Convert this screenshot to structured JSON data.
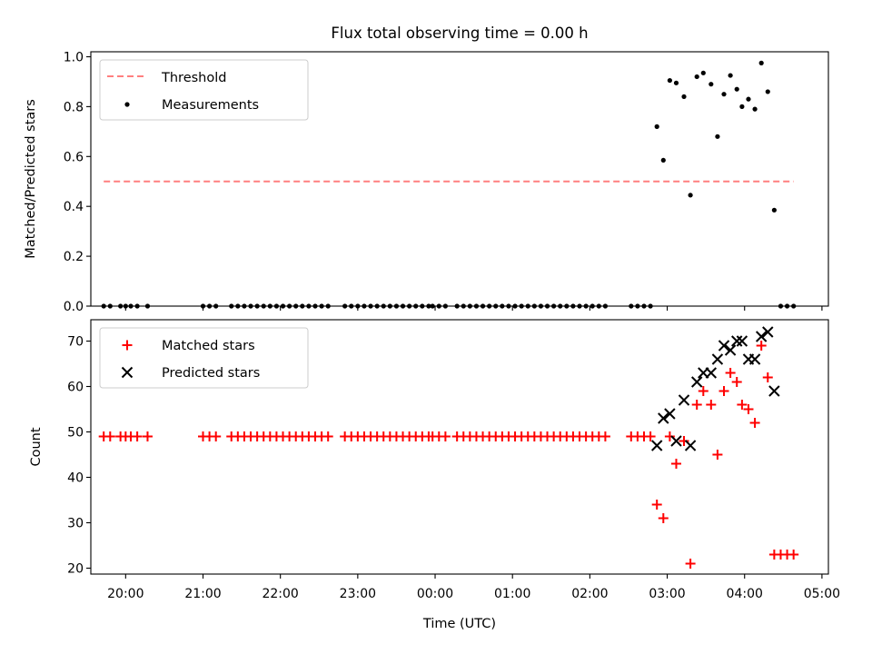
{
  "title": "Flux total observing time = 0.00 h",
  "chart_data": [
    {
      "type": "scatter",
      "title": "Flux total observing time = 0.00 h",
      "xlabel": "",
      "ylabel": "Matched/Predicted stars",
      "xlim": [
        "19:33",
        "05:05"
      ],
      "ylim": [
        0.0,
        1.02
      ],
      "yticks": [
        0.0,
        0.2,
        0.4,
        0.6,
        0.8,
        1.0
      ],
      "ytick_labels": [
        "0.0",
        "0.2",
        "0.4",
        "0.6",
        "0.8",
        "1.0"
      ],
      "legend": "top-left",
      "grid": false,
      "threshold": {
        "name": "Threshold",
        "value": 0.5,
        "x_range": [
          "19:43",
          "04:38"
        ],
        "color": "#ff7f7f",
        "style": "dashed"
      },
      "series": [
        {
          "name": "Measurements",
          "color": "#000000",
          "marker": "dot",
          "points": [
            [
              "19:43",
              0
            ],
            [
              "19:48",
              0
            ],
            [
              "19:56",
              0
            ],
            [
              "20:00",
              0
            ],
            [
              "20:04",
              0
            ],
            [
              "20:09",
              0
            ],
            [
              "20:17",
              0
            ],
            [
              "21:00",
              0
            ],
            [
              "21:05",
              0
            ],
            [
              "21:10",
              0
            ],
            [
              "21:22",
              0
            ],
            [
              "21:27",
              0
            ],
            [
              "21:32",
              0
            ],
            [
              "21:37",
              0
            ],
            [
              "21:42",
              0
            ],
            [
              "21:47",
              0
            ],
            [
              "21:52",
              0
            ],
            [
              "21:57",
              0
            ],
            [
              "22:02",
              0
            ],
            [
              "22:07",
              0
            ],
            [
              "22:12",
              0
            ],
            [
              "22:17",
              0
            ],
            [
              "22:22",
              0
            ],
            [
              "22:27",
              0
            ],
            [
              "22:32",
              0
            ],
            [
              "22:37",
              0
            ],
            [
              "22:50",
              0
            ],
            [
              "22:55",
              0
            ],
            [
              "23:00",
              0
            ],
            [
              "23:05",
              0
            ],
            [
              "23:10",
              0
            ],
            [
              "23:15",
              0
            ],
            [
              "23:20",
              0
            ],
            [
              "23:25",
              0
            ],
            [
              "23:30",
              0
            ],
            [
              "23:35",
              0
            ],
            [
              "23:40",
              0
            ],
            [
              "23:45",
              0
            ],
            [
              "23:50",
              0
            ],
            [
              "23:55",
              0
            ],
            [
              "23:58",
              0
            ],
            [
              "00:03",
              0
            ],
            [
              "00:08",
              0
            ],
            [
              "00:17",
              0
            ],
            [
              "00:22",
              0
            ],
            [
              "00:27",
              0
            ],
            [
              "00:32",
              0
            ],
            [
              "00:37",
              0
            ],
            [
              "00:42",
              0
            ],
            [
              "00:47",
              0
            ],
            [
              "00:52",
              0
            ],
            [
              "00:57",
              0
            ],
            [
              "01:02",
              0
            ],
            [
              "01:07",
              0
            ],
            [
              "01:12",
              0
            ],
            [
              "01:17",
              0
            ],
            [
              "01:22",
              0
            ],
            [
              "01:27",
              0
            ],
            [
              "01:32",
              0
            ],
            [
              "01:37",
              0
            ],
            [
              "01:42",
              0
            ],
            [
              "01:47",
              0
            ],
            [
              "01:52",
              0
            ],
            [
              "01:57",
              0
            ],
            [
              "02:02",
              0
            ],
            [
              "02:07",
              0
            ],
            [
              "02:12",
              0
            ],
            [
              "02:32",
              0
            ],
            [
              "02:37",
              0
            ],
            [
              "02:42",
              0
            ],
            [
              "02:47",
              0
            ],
            [
              "02:52",
              0.72
            ],
            [
              "02:57",
              0.585
            ],
            [
              "03:02",
              0.905
            ],
            [
              "03:07",
              0.895
            ],
            [
              "03:13",
              0.84
            ],
            [
              "03:18",
              0.445
            ],
            [
              "03:23",
              0.92
            ],
            [
              "03:28",
              0.935
            ],
            [
              "03:34",
              0.89
            ],
            [
              "03:39",
              0.68
            ],
            [
              "03:44",
              0.85
            ],
            [
              "03:49",
              0.925
            ],
            [
              "03:54",
              0.87
            ],
            [
              "03:58",
              0.8
            ],
            [
              "04:03",
              0.83
            ],
            [
              "04:08",
              0.79
            ],
            [
              "04:13",
              0.975
            ],
            [
              "04:18",
              0.86
            ],
            [
              "04:23",
              0.385
            ],
            [
              "04:28",
              0
            ],
            [
              "04:33",
              0
            ],
            [
              "04:38",
              0
            ]
          ]
        }
      ]
    },
    {
      "type": "scatter",
      "title": "",
      "xlabel": "Time (UTC)",
      "ylabel": "Count",
      "xlim": [
        "19:33",
        "05:05"
      ],
      "ylim": [
        18.7,
        74.7
      ],
      "yticks": [
        20,
        30,
        40,
        50,
        60,
        70
      ],
      "ytick_labels": [
        "20",
        "30",
        "40",
        "50",
        "60",
        "70"
      ],
      "xticks": [
        "20:00",
        "21:00",
        "22:00",
        "23:00",
        "00:00",
        "01:00",
        "02:00",
        "03:00",
        "04:00",
        "05:00"
      ],
      "legend": "top-left",
      "grid": false,
      "series": [
        {
          "name": "Matched stars",
          "color": "#ff0000",
          "marker": "plus",
          "points": [
            [
              "19:43",
              49
            ],
            [
              "19:48",
              49
            ],
            [
              "19:56",
              49
            ],
            [
              "20:00",
              49
            ],
            [
              "20:04",
              49
            ],
            [
              "20:09",
              49
            ],
            [
              "20:17",
              49
            ],
            [
              "21:00",
              49
            ],
            [
              "21:05",
              49
            ],
            [
              "21:10",
              49
            ],
            [
              "21:22",
              49
            ],
            [
              "21:27",
              49
            ],
            [
              "21:32",
              49
            ],
            [
              "21:37",
              49
            ],
            [
              "21:42",
              49
            ],
            [
              "21:47",
              49
            ],
            [
              "21:52",
              49
            ],
            [
              "21:57",
              49
            ],
            [
              "22:02",
              49
            ],
            [
              "22:07",
              49
            ],
            [
              "22:12",
              49
            ],
            [
              "22:17",
              49
            ],
            [
              "22:22",
              49
            ],
            [
              "22:27",
              49
            ],
            [
              "22:32",
              49
            ],
            [
              "22:37",
              49
            ],
            [
              "22:50",
              49
            ],
            [
              "22:55",
              49
            ],
            [
              "23:00",
              49
            ],
            [
              "23:05",
              49
            ],
            [
              "23:10",
              49
            ],
            [
              "23:15",
              49
            ],
            [
              "23:20",
              49
            ],
            [
              "23:25",
              49
            ],
            [
              "23:30",
              49
            ],
            [
              "23:35",
              49
            ],
            [
              "23:40",
              49
            ],
            [
              "23:45",
              49
            ],
            [
              "23:50",
              49
            ],
            [
              "23:55",
              49
            ],
            [
              "23:58",
              49
            ],
            [
              "00:03",
              49
            ],
            [
              "00:08",
              49
            ],
            [
              "00:17",
              49
            ],
            [
              "00:22",
              49
            ],
            [
              "00:27",
              49
            ],
            [
              "00:32",
              49
            ],
            [
              "00:37",
              49
            ],
            [
              "00:42",
              49
            ],
            [
              "00:47",
              49
            ],
            [
              "00:52",
              49
            ],
            [
              "00:57",
              49
            ],
            [
              "01:02",
              49
            ],
            [
              "01:07",
              49
            ],
            [
              "01:12",
              49
            ],
            [
              "01:17",
              49
            ],
            [
              "01:22",
              49
            ],
            [
              "01:27",
              49
            ],
            [
              "01:32",
              49
            ],
            [
              "01:37",
              49
            ],
            [
              "01:42",
              49
            ],
            [
              "01:47",
              49
            ],
            [
              "01:52",
              49
            ],
            [
              "01:57",
              49
            ],
            [
              "02:02",
              49
            ],
            [
              "02:07",
              49
            ],
            [
              "02:12",
              49
            ],
            [
              "02:32",
              49
            ],
            [
              "02:37",
              49
            ],
            [
              "02:42",
              49
            ],
            [
              "02:47",
              49
            ],
            [
              "02:52",
              34
            ],
            [
              "02:57",
              31
            ],
            [
              "03:02",
              49
            ],
            [
              "03:07",
              43
            ],
            [
              "03:13",
              48
            ],
            [
              "03:18",
              21
            ],
            [
              "03:23",
              56
            ],
            [
              "03:28",
              59
            ],
            [
              "03:34",
              56
            ],
            [
              "03:39",
              45
            ],
            [
              "03:44",
              59
            ],
            [
              "03:49",
              63
            ],
            [
              "03:54",
              61
            ],
            [
              "03:58",
              56
            ],
            [
              "04:03",
              55
            ],
            [
              "04:08",
              52
            ],
            [
              "04:13",
              69
            ],
            [
              "04:18",
              62
            ],
            [
              "04:23",
              23
            ],
            [
              "04:28",
              23
            ],
            [
              "04:33",
              23
            ],
            [
              "04:38",
              23
            ]
          ]
        },
        {
          "name": "Predicted stars",
          "color": "#000000",
          "marker": "x",
          "points": [
            [
              "02:52",
              47
            ],
            [
              "02:57",
              53
            ],
            [
              "03:02",
              54
            ],
            [
              "03:07",
              48
            ],
            [
              "03:13",
              57
            ],
            [
              "03:18",
              47
            ],
            [
              "03:23",
              61
            ],
            [
              "03:28",
              63
            ],
            [
              "03:34",
              63
            ],
            [
              "03:39",
              66
            ],
            [
              "03:44",
              69
            ],
            [
              "03:49",
              68
            ],
            [
              "03:54",
              70
            ],
            [
              "03:58",
              70
            ],
            [
              "04:03",
              66
            ],
            [
              "04:08",
              66
            ],
            [
              "04:13",
              71
            ],
            [
              "04:18",
              72
            ],
            [
              "04:23",
              59
            ]
          ]
        }
      ]
    }
  ]
}
